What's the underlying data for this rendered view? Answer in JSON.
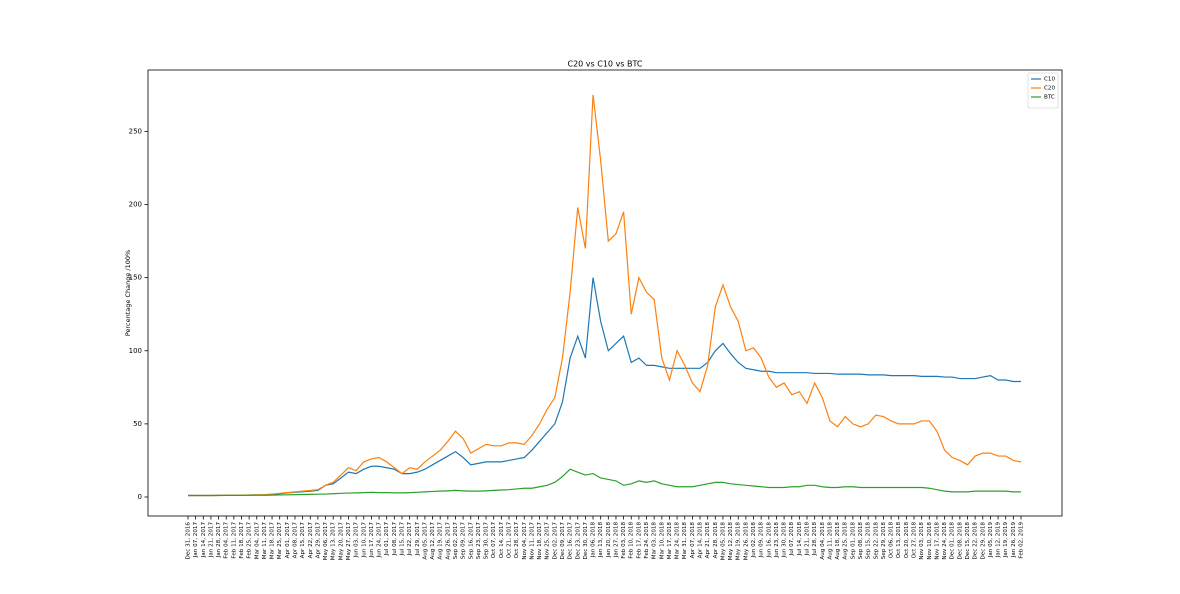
{
  "chart_data": {
    "type": "line",
    "title": "C20 vs C10 vs BTC",
    "y_label": "Percentage Change /100%",
    "categories": [
      "Dec 31, 2016",
      "Jan 07, 2017",
      "Jan 14, 2017",
      "Jan 21, 2017",
      "Jan 28, 2017",
      "Feb 04, 2017",
      "Feb 11, 2017",
      "Feb 18, 2017",
      "Feb 25, 2017",
      "Mar 04, 2017",
      "Mar 11, 2017",
      "Mar 18, 2017",
      "Mar 25, 2017",
      "Apr 01, 2017",
      "Apr 08, 2017",
      "Apr 15, 2017",
      "Apr 22, 2017",
      "Apr 29, 2017",
      "May 06, 2017",
      "May 13, 2017",
      "May 20, 2017",
      "May 27, 2017",
      "Jun 03, 2017",
      "Jun 10, 2017",
      "Jun 17, 2017",
      "Jun 24, 2017",
      "Jul 01, 2017",
      "Jul 08, 2017",
      "Jul 15, 2017",
      "Jul 22, 2017",
      "Jul 29, 2017",
      "Aug 05, 2017",
      "Aug 12, 2017",
      "Aug 19, 2017",
      "Aug 26, 2017",
      "Sep 02, 2017",
      "Sep 09, 2017",
      "Sep 16, 2017",
      "Sep 23, 2017",
      "Sep 30, 2017",
      "Oct 07, 2017",
      "Oct 14, 2017",
      "Oct 21, 2017",
      "Oct 28, 2017",
      "Nov 04, 2017",
      "Nov 11, 2017",
      "Nov 18, 2017",
      "Nov 25, 2017",
      "Dec 02, 2017",
      "Dec 09, 2017",
      "Dec 16, 2017",
      "Dec 23, 2017",
      "Dec 30, 2017",
      "Jan 06, 2018",
      "Jan 13, 2018",
      "Jan 20, 2018",
      "Jan 27, 2018",
      "Feb 03, 2018",
      "Feb 10, 2018",
      "Feb 17, 2018",
      "Feb 24, 2018",
      "Mar 03, 2018",
      "Mar 10, 2018",
      "Mar 17, 2018",
      "Mar 24, 2018",
      "Mar 31, 2018",
      "Apr 07, 2018",
      "Apr 14, 2018",
      "Apr 21, 2018",
      "Apr 28, 2018",
      "May 05, 2018",
      "May 12, 2018",
      "May 19, 2018",
      "May 26, 2018",
      "Jun 02, 2018",
      "Jun 09, 2018",
      "Jun 16, 2018",
      "Jun 23, 2018",
      "Jun 30, 2018",
      "Jul 07, 2018",
      "Jul 14, 2018",
      "Jul 21, 2018",
      "Jul 28, 2018",
      "Aug 04, 2018",
      "Aug 11, 2018",
      "Aug 18, 2018",
      "Aug 25, 2018",
      "Sep 01, 2018",
      "Sep 08, 2018",
      "Sep 15, 2018",
      "Sep 22, 2018",
      "Sep 29, 2018",
      "Oct 06, 2018",
      "Oct 13, 2018",
      "Oct 20, 2018",
      "Oct 27, 2018",
      "Nov 03, 2018",
      "Nov 10, 2018",
      "Nov 17, 2018",
      "Nov 24, 2018",
      "Dec 01, 2018",
      "Dec 08, 2018",
      "Dec 15, 2018",
      "Dec 22, 2018",
      "Dec 29, 2018",
      "Jan 05, 2019",
      "Jan 12, 2019",
      "Jan 19, 2019",
      "Jan 26, 2019",
      "Feb 02, 2019"
    ],
    "series": [
      {
        "name": "C10",
        "color": "#1f77b4",
        "values": [
          1,
          1,
          1,
          1,
          1.1,
          1.1,
          1.2,
          1.2,
          1.3,
          1.4,
          1.5,
          1.8,
          2.2,
          2.8,
          3.2,
          3.6,
          4,
          4.5,
          8,
          9,
          13,
          17,
          16,
          19,
          21,
          21,
          20,
          19,
          16,
          16,
          17,
          19,
          22,
          25,
          28,
          31,
          27,
          22,
          23,
          24,
          24,
          24,
          25,
          26,
          27,
          32,
          38,
          44,
          50,
          65,
          95,
          110,
          95,
          150,
          120,
          100,
          105,
          110,
          92,
          95,
          90,
          90,
          89,
          88,
          88,
          88,
          88,
          88,
          92,
          100,
          105,
          98,
          92,
          88,
          87,
          86,
          86,
          85,
          85,
          85,
          85,
          85,
          84.5,
          84.5,
          84.5,
          84,
          84,
          84,
          84,
          83.5,
          83.5,
          83.5,
          83,
          83,
          83,
          83,
          82.5,
          82.5,
          82.5,
          82,
          82,
          81,
          81,
          81,
          82,
          83,
          80,
          80,
          79,
          79
        ]
      },
      {
        "name": "C20",
        "color": "#ff7f0e",
        "values": [
          1,
          1,
          1,
          1,
          1.1,
          1.2,
          1.2,
          1.3,
          1.4,
          1.5,
          1.6,
          2,
          2.5,
          3,
          3.5,
          4,
          4.5,
          5,
          8,
          10,
          15,
          20,
          18,
          24,
          26,
          27,
          24,
          20,
          16,
          20,
          19,
          24,
          28,
          32,
          38,
          45,
          40,
          30,
          33,
          36,
          35,
          35,
          37,
          37,
          36,
          42,
          50,
          60,
          68,
          95,
          140,
          198,
          170,
          275,
          230,
          175,
          180,
          195,
          125,
          150,
          140,
          135,
          95,
          80,
          100,
          90,
          78,
          72,
          90,
          130,
          145,
          130,
          120,
          100,
          102,
          95,
          82,
          75,
          78,
          70,
          72,
          64,
          78,
          68,
          52,
          48,
          55,
          50,
          48,
          50,
          56,
          55,
          52,
          50,
          50,
          50,
          52,
          52,
          45,
          32,
          27,
          25,
          22,
          28,
          30,
          30,
          28,
          28,
          25,
          24
        ]
      },
      {
        "name": "BTC",
        "color": "#2ca02c",
        "values": [
          1,
          1,
          1,
          1,
          1,
          1.1,
          1.1,
          1.1,
          1.2,
          1.2,
          1.2,
          1.3,
          1.4,
          1.5,
          1.6,
          1.7,
          1.8,
          1.9,
          2,
          2.2,
          2.5,
          2.7,
          2.8,
          3,
          3.2,
          3,
          3,
          2.8,
          2.8,
          3,
          3.2,
          3.5,
          3.8,
          4,
          4.2,
          4.5,
          4.2,
          4,
          4,
          4.2,
          4.5,
          4.8,
          5,
          5.5,
          6,
          6,
          7,
          8,
          10,
          14,
          19,
          17,
          15,
          16,
          13,
          12,
          11,
          8,
          9,
          11,
          10,
          11,
          9,
          8,
          7,
          7,
          7,
          8,
          9,
          10,
          10,
          9,
          8.5,
          8,
          7.5,
          7,
          6.5,
          6.5,
          6.5,
          7,
          7,
          8,
          8,
          7,
          6.5,
          6.5,
          7,
          7,
          6.5,
          6.5,
          6.5,
          6.5,
          6.5,
          6.5,
          6.5,
          6.5,
          6.5,
          6,
          5,
          4,
          3.5,
          3.5,
          3.5,
          4,
          4,
          4,
          4,
          4,
          3.5,
          3.5
        ]
      }
    ],
    "ylim": [
      -13,
      292
    ],
    "yticks": [
      0,
      50,
      100,
      150,
      200,
      250
    ],
    "grid": false,
    "legend": "upper right"
  }
}
